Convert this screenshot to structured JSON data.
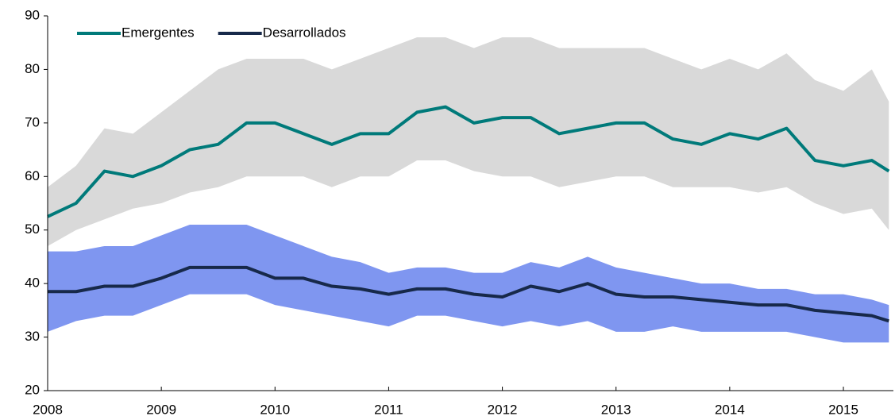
{
  "chart_data": {
    "type": "line",
    "x": [
      2008,
      2008.25,
      2008.5,
      2008.75,
      2009,
      2009.25,
      2009.5,
      2009.75,
      2010,
      2010.25,
      2010.5,
      2010.75,
      2011,
      2011.25,
      2011.5,
      2011.75,
      2012,
      2012.25,
      2012.5,
      2012.75,
      2013,
      2013.25,
      2013.5,
      2013.75,
      2014,
      2014.25,
      2014.5,
      2014.75,
      2015,
      2015.25,
      2015.4
    ],
    "series": [
      {
        "name": "Emergentes",
        "color": "#007a7a",
        "values": [
          52.5,
          55,
          61,
          60,
          62,
          65,
          66,
          70,
          70,
          68,
          66,
          68,
          68,
          72,
          73,
          70,
          71,
          71,
          68,
          69,
          70,
          70,
          67,
          66,
          68,
          67,
          69,
          63,
          62,
          63,
          61
        ]
      },
      {
        "name": "Desarrollados",
        "color": "#17294a",
        "values": [
          38.5,
          38.5,
          39.5,
          39.5,
          41,
          43,
          43,
          43,
          41,
          41,
          39.5,
          39,
          38,
          39,
          39,
          38,
          37.5,
          39.5,
          38.5,
          40,
          38,
          37.5,
          37.5,
          37,
          36.5,
          36,
          36,
          35,
          34.5,
          34,
          33
        ]
      }
    ],
    "bands": [
      {
        "color": "#d9d9d9",
        "lower": [
          47,
          50,
          52,
          54,
          55,
          57,
          58,
          60,
          60,
          60,
          58,
          60,
          60,
          63,
          63,
          61,
          60,
          60,
          58,
          59,
          60,
          60,
          58,
          58,
          58,
          57,
          58,
          55,
          53,
          54,
          50
        ],
        "upper": [
          58,
          62,
          69,
          68,
          72,
          76,
          80,
          82,
          82,
          82,
          80,
          82,
          84,
          86,
          86,
          84,
          86,
          86,
          84,
          84,
          84,
          84,
          82,
          80,
          82,
          80,
          83,
          78,
          76,
          80,
          74
        ]
      },
      {
        "color": "#7f96f0",
        "lower": [
          31,
          33,
          34,
          34,
          36,
          38,
          38,
          38,
          36,
          35,
          34,
          33,
          32,
          34,
          34,
          33,
          32,
          33,
          32,
          33,
          31,
          31,
          32,
          31,
          31,
          31,
          31,
          30,
          29,
          29,
          29
        ],
        "upper": [
          46,
          46,
          47,
          47,
          49,
          51,
          51,
          51,
          49,
          47,
          45,
          44,
          42,
          43,
          43,
          42,
          42,
          44,
          43,
          45,
          43,
          42,
          41,
          40,
          40,
          39,
          39,
          38,
          38,
          37,
          36
        ]
      }
    ],
    "xlim": [
      2008,
      2015.44
    ],
    "xticks": [
      2008,
      2009,
      2010,
      2011,
      2012,
      2013,
      2014,
      2015
    ],
    "ylim": [
      20,
      90
    ],
    "yticks": [
      20,
      30,
      40,
      50,
      60,
      70,
      80,
      90
    ],
    "grid": false,
    "legend": "top-left"
  }
}
